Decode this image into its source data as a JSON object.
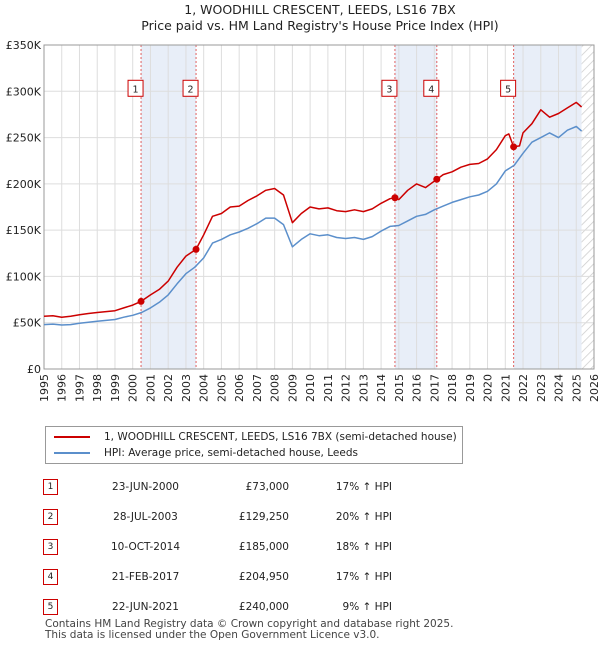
{
  "chart_data": {
    "type": "line",
    "title": "1, WOODHILL CRESCENT, LEEDS, LS16 7BX",
    "subtitle": "Price paid vs. HM Land Registry's House Price Index (HPI)",
    "xlabel": "",
    "ylabel": "",
    "xlim": [
      1995,
      2026
    ],
    "ylim": [
      0,
      350000
    ],
    "x_ticks": [
      1995,
      1996,
      1997,
      1998,
      1999,
      2000,
      2001,
      2002,
      2003,
      2004,
      2005,
      2006,
      2007,
      2008,
      2009,
      2010,
      2011,
      2012,
      2013,
      2014,
      2015,
      2016,
      2017,
      2018,
      2019,
      2020,
      2021,
      2022,
      2023,
      2024,
      2025,
      2026
    ],
    "y_ticks": [
      {
        "value": 0,
        "label": "£0"
      },
      {
        "value": 50000,
        "label": "£50K"
      },
      {
        "value": 100000,
        "label": "£100K"
      },
      {
        "value": 150000,
        "label": "£150K"
      },
      {
        "value": 200000,
        "label": "£200K"
      },
      {
        "value": 250000,
        "label": "£250K"
      },
      {
        "value": 300000,
        "label": "£300K"
      },
      {
        "value": 350000,
        "label": "£350K"
      }
    ],
    "series": [
      {
        "name": "1, WOODHILL CRESCENT, LEEDS, LS16 7BX (semi-detached house)",
        "color": "#cc0000",
        "x": [
          1995,
          1995.5,
          1996,
          1996.5,
          1997,
          1997.5,
          1998,
          1998.5,
          1999,
          1999.5,
          2000,
          2000.47,
          2001,
          2001.5,
          2002,
          2002.5,
          2003,
          2003.57,
          2004,
          2004.5,
          2005,
          2005.5,
          2006,
          2006.5,
          2007,
          2007.5,
          2008,
          2008.5,
          2009,
          2009.5,
          2010,
          2010.5,
          2011,
          2011.5,
          2012,
          2012.5,
          2013,
          2013.5,
          2014,
          2014.5,
          2014.78,
          2015,
          2015.5,
          2016,
          2016.5,
          2017.14,
          2017.5,
          2018,
          2018.5,
          2019,
          2019.5,
          2020,
          2020.5,
          2021,
          2021.2,
          2021.47,
          2021.8,
          2022,
          2022.5,
          2023,
          2023.5,
          2024,
          2024.5,
          2025,
          2025.3
        ],
        "values": [
          57000,
          57500,
          56000,
          57000,
          58500,
          60000,
          61000,
          62000,
          63000,
          66000,
          69000,
          73000,
          80000,
          86000,
          95000,
          110000,
          122000,
          129250,
          145000,
          165000,
          168000,
          175000,
          176000,
          182000,
          187000,
          193000,
          195000,
          188000,
          158000,
          168000,
          175000,
          173000,
          174000,
          171000,
          170000,
          172000,
          170000,
          173000,
          179000,
          184000,
          185000,
          183000,
          193000,
          200000,
          196000,
          204950,
          210000,
          213000,
          218000,
          221000,
          222000,
          227000,
          237000,
          252000,
          254000,
          240000,
          241000,
          255000,
          265000,
          280000,
          272000,
          276000,
          282000,
          288000,
          283000
        ]
      },
      {
        "name": "HPI: Average price, semi-detached house, Leeds",
        "color": "#5b8fcb",
        "x": [
          1995,
          1995.5,
          1996,
          1996.5,
          1997,
          1997.5,
          1998,
          1998.5,
          1999,
          1999.5,
          2000,
          2000.5,
          2001,
          2001.5,
          2002,
          2002.5,
          2003,
          2003.5,
          2004,
          2004.5,
          2005,
          2005.5,
          2006,
          2006.5,
          2007,
          2007.5,
          2008,
          2008.5,
          2009,
          2009.5,
          2010,
          2010.5,
          2011,
          2011.5,
          2012,
          2012.5,
          2013,
          2013.5,
          2014,
          2014.5,
          2015,
          2015.5,
          2016,
          2016.5,
          2017,
          2017.5,
          2018,
          2018.5,
          2019,
          2019.5,
          2020,
          2020.5,
          2021,
          2021.5,
          2022,
          2022.5,
          2023,
          2023.5,
          2024,
          2024.5,
          2025,
          2025.3
        ],
        "values": [
          48000,
          48500,
          47500,
          48000,
          49500,
          50500,
          51500,
          52500,
          53500,
          56000,
          58000,
          61000,
          66000,
          72000,
          80000,
          92000,
          103000,
          110000,
          120000,
          136000,
          140000,
          145000,
          148000,
          152000,
          157000,
          163000,
          163000,
          156000,
          132000,
          140000,
          146000,
          144000,
          145000,
          142000,
          141000,
          142000,
          140000,
          143000,
          149000,
          154000,
          155000,
          160000,
          165000,
          167000,
          172000,
          176000,
          180000,
          183000,
          186000,
          188000,
          192000,
          200000,
          214000,
          220000,
          233000,
          245000,
          250000,
          255000,
          250000,
          258000,
          262000,
          257000
        ]
      }
    ],
    "sales": [
      {
        "num": "1",
        "x": 2000.47,
        "value": 73000
      },
      {
        "num": "2",
        "x": 2003.57,
        "value": 129250
      },
      {
        "num": "3",
        "x": 2014.78,
        "value": 185000
      },
      {
        "num": "4",
        "x": 2017.14,
        "value": 204950
      },
      {
        "num": "5",
        "x": 2021.47,
        "value": 240000
      }
    ],
    "shaded_ranges": [
      [
        2000.47,
        2003.57
      ],
      [
        2014.78,
        2017.14
      ],
      [
        2021.47,
        2025.3
      ]
    ],
    "hatched_from": 2025.3
  },
  "legend": {
    "series1": "1, WOODHILL CRESCENT, LEEDS, LS16 7BX (semi-detached house)",
    "series2": "HPI: Average price, semi-detached house, Leeds"
  },
  "table": [
    {
      "num": "1",
      "date": "23-JUN-2000",
      "price": "£73,000",
      "hpi": "17% ↑ HPI"
    },
    {
      "num": "2",
      "date": "28-JUL-2003",
      "price": "£129,250",
      "hpi": "20% ↑ HPI"
    },
    {
      "num": "3",
      "date": "10-OCT-2014",
      "price": "£185,000",
      "hpi": "18% ↑ HPI"
    },
    {
      "num": "4",
      "date": "21-FEB-2017",
      "price": "£204,950",
      "hpi": "17% ↑ HPI"
    },
    {
      "num": "5",
      "date": "22-JUN-2021",
      "price": "£240,000",
      "hpi": "9% ↑ HPI"
    }
  ],
  "footer": {
    "line1": "Contains HM Land Registry data © Crown copyright and database right 2025.",
    "line2": "This data is licensed under the Open Government Licence v3.0."
  }
}
